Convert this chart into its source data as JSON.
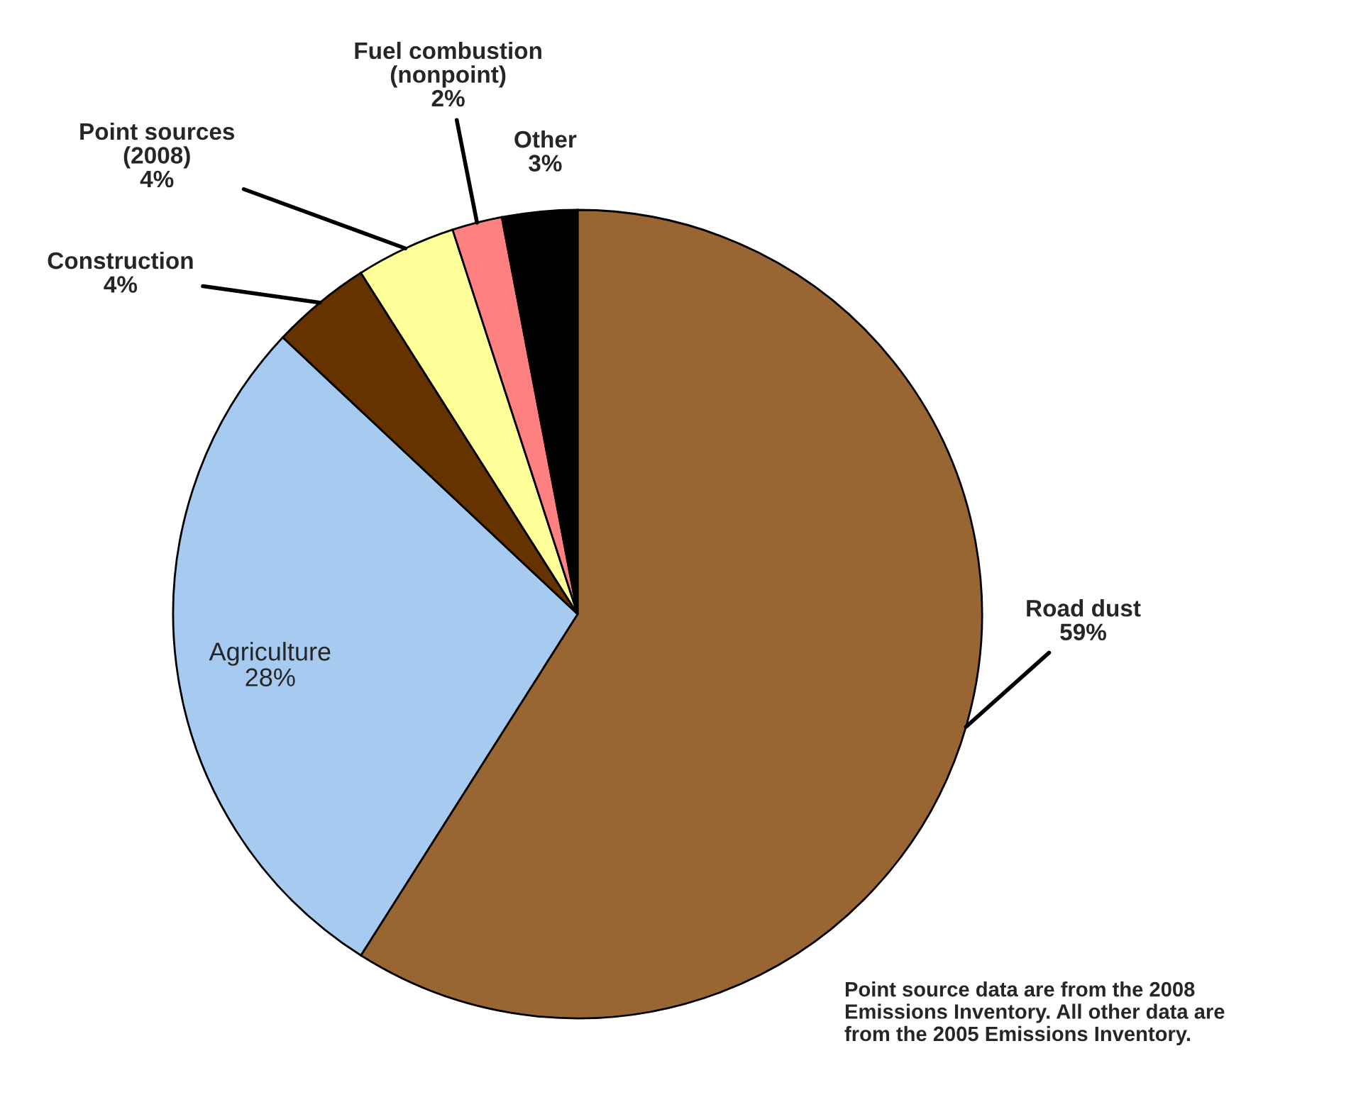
{
  "chart_data": {
    "type": "pie",
    "categories": [
      "Road dust",
      "Agriculture",
      "Construction",
      "Point sources\n(2008)",
      "Fuel combustion\n(nonpoint)",
      "Other"
    ],
    "values": [
      59,
      28,
      4,
      4,
      2,
      3
    ],
    "colors": [
      "#996633",
      "#a6caf0",
      "#663300",
      "#ffff99",
      "#ff8080",
      "#000000"
    ],
    "value_labels": [
      "59%",
      "28%",
      "4%",
      "4%",
      "2%",
      "3%"
    ],
    "annotations": [
      "Point source data are from the 2008\nEmissions Inventory. All other data are\nfrom the 2005 Emissions Inventory."
    ]
  }
}
